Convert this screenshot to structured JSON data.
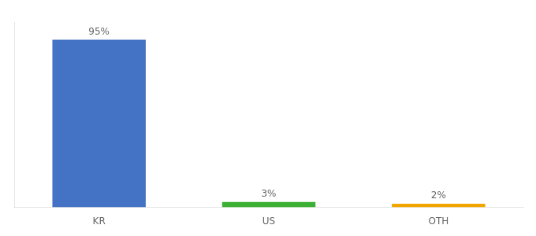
{
  "chart_data": {
    "type": "bar",
    "categories": [
      "KR",
      "US",
      "OTH"
    ],
    "values": [
      95,
      3,
      2
    ],
    "value_labels": [
      "95%",
      "3%",
      "2%"
    ],
    "colors": [
      "#4472c4",
      "#3cb034",
      "#f0a500"
    ],
    "ylim": [
      0,
      105
    ],
    "grid": false,
    "data_labels": true,
    "tick_labels": "x"
  }
}
